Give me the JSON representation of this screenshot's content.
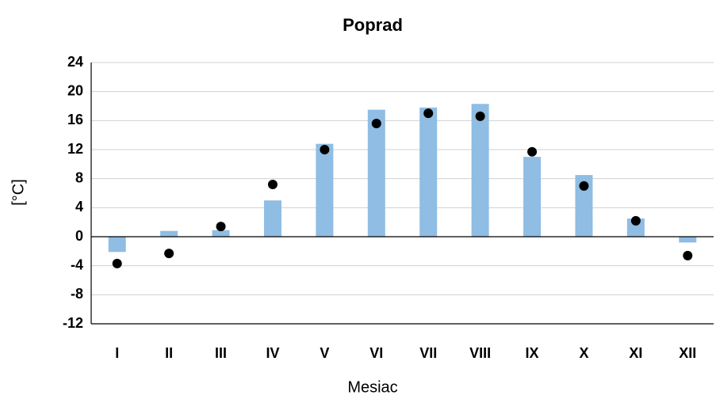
{
  "chart_data": {
    "type": "bar",
    "title": "Poprad",
    "x_label": "Mesiac",
    "y_label": "[°C]",
    "categories": [
      "I",
      "II",
      "III",
      "IV",
      "V",
      "VI",
      "VII",
      "VIII",
      "IX",
      "X",
      "XI",
      "XII"
    ],
    "series": [
      {
        "type": "bar",
        "color": "#8fbde3",
        "values": [
          -2.1,
          0.8,
          0.9,
          5.0,
          12.8,
          17.5,
          17.8,
          18.3,
          11.0,
          8.5,
          2.5,
          -0.8
        ]
      },
      {
        "type": "scatter",
        "color": "#000000",
        "values": [
          -3.7,
          -2.3,
          1.4,
          7.2,
          12.0,
          15.6,
          17.0,
          16.6,
          11.7,
          7.0,
          2.2,
          -2.6
        ]
      }
    ],
    "ylim": [
      -12,
      24
    ],
    "yticks": [
      -12,
      -8,
      -4,
      0,
      4,
      8,
      12,
      16,
      20,
      24
    ],
    "grid": true
  }
}
